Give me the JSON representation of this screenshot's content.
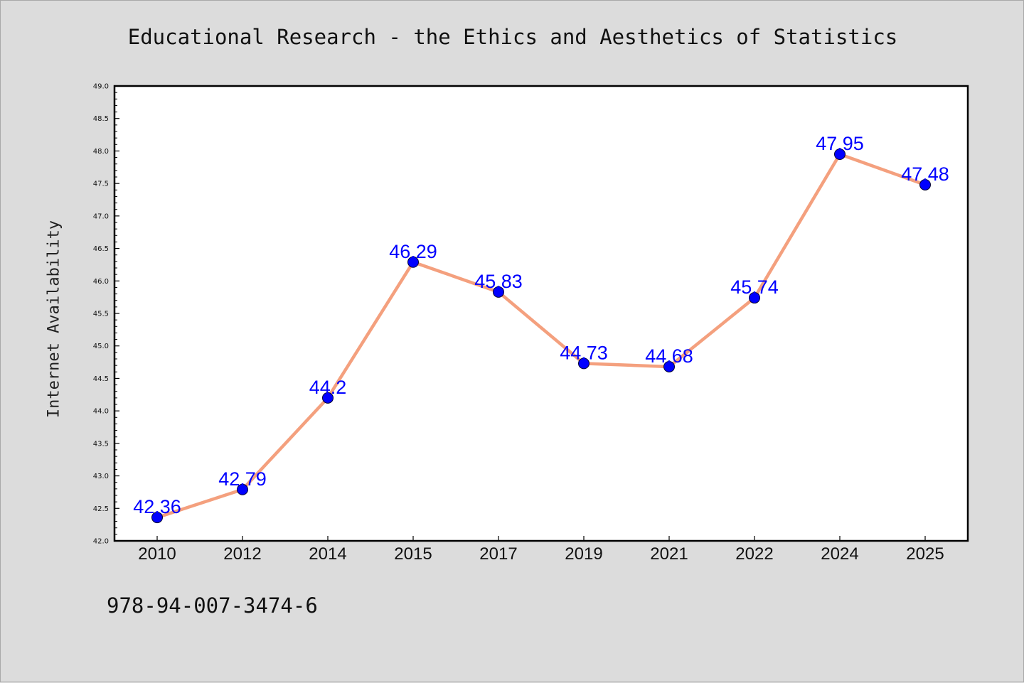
{
  "title": "Educational Research - the Ethics and Aesthetics of Statistics",
  "footer_text": "978-94-007-3474-6",
  "chart_data": {
    "type": "line",
    "title": "Educational Research - the Ethics and Aesthetics of Statistics",
    "xlabel": "",
    "ylabel": "Internet Availability",
    "categories": [
      "2010",
      "2012",
      "2014",
      "2015",
      "2017",
      "2019",
      "2021",
      "2022",
      "2024",
      "2025"
    ],
    "series": [
      {
        "values": [
          42.36,
          42.79,
          44.2,
          46.29,
          45.83,
          44.73,
          44.68,
          45.74,
          47.95,
          47.48
        ],
        "data_labels": [
          "42.36",
          "42.79",
          "44.2",
          "46.29",
          "45.83",
          "44.73",
          "44.68",
          "45.74",
          "47.95",
          "47.48"
        ]
      }
    ],
    "ylim": [
      42.0,
      49.0
    ],
    "yticks": [
      "42.0",
      "42.5",
      "43.0",
      "43.5",
      "44.0",
      "44.5",
      "45.0",
      "45.5",
      "46.0",
      "46.5",
      "47.0",
      "47.5",
      "48.0",
      "48.5",
      "49.0"
    ],
    "grid": false,
    "legend": "none",
    "colors": {
      "line": "#f4a07e",
      "marker": "#0000ff",
      "label": "#0000ff",
      "plot_background": "#ffffff",
      "figure_background": "#dcdcdc"
    }
  }
}
